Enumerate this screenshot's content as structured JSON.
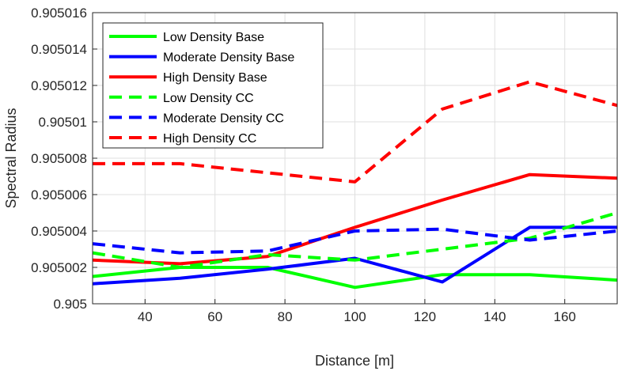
{
  "chart_data": {
    "type": "line",
    "title": "",
    "xlabel": "Distance [m]",
    "ylabel": "Spectral Radius",
    "xlim": [
      25,
      175
    ],
    "ylim": [
      0.905,
      0.905016
    ],
    "x_ticks": [
      40,
      60,
      80,
      100,
      120,
      140,
      160
    ],
    "x_tick_labels": [
      "40",
      "60",
      "80",
      "100",
      "120",
      "140",
      "160"
    ],
    "y_ticks": [
      0.905,
      0.905002,
      0.905004,
      0.905006,
      0.905008,
      0.90501,
      0.905012,
      0.905014,
      0.905016
    ],
    "y_tick_labels": [
      "0.905",
      "0.905002",
      "0.905004",
      "0.905006",
      "0.905008",
      "0.90501",
      "0.905012",
      "0.905014",
      "0.905016"
    ],
    "grid": true,
    "legend_position": "top-left",
    "x": [
      25,
      50,
      75,
      100,
      125,
      150,
      175
    ],
    "series": [
      {
        "name": "Low Density Base",
        "color": "#00ff00",
        "dash": "solid",
        "values": [
          0.9050015,
          0.905002,
          0.905002,
          0.9050009,
          0.9050016,
          0.9050016,
          0.9050013
        ]
      },
      {
        "name": "Moderate Density Base",
        "color": "#0000ff",
        "dash": "solid",
        "values": [
          0.9050011,
          0.9050014,
          0.9050019,
          0.9050025,
          0.9050012,
          0.9050042,
          0.9050042
        ]
      },
      {
        "name": "High Density Base",
        "color": "#ff0000",
        "dash": "solid",
        "values": [
          0.9050024,
          0.9050022,
          0.9050026,
          0.9050042,
          0.9050057,
          0.9050071,
          0.9050069
        ]
      },
      {
        "name": "Low Density CC",
        "color": "#00ff00",
        "dash": "dashed",
        "values": [
          0.9050028,
          0.905002,
          0.9050027,
          0.9050024,
          0.905003,
          0.9050036,
          0.905005
        ]
      },
      {
        "name": "Moderate Density CC",
        "color": "#0000ff",
        "dash": "dashed",
        "values": [
          0.9050033,
          0.9050028,
          0.9050029,
          0.905004,
          0.9050041,
          0.9050035,
          0.905004
        ]
      },
      {
        "name": "High Density CC",
        "color": "#ff0000",
        "dash": "dashed",
        "values": [
          0.9050077,
          0.9050077,
          0.9050072,
          0.9050067,
          0.9050107,
          0.9050122,
          0.9050109
        ]
      }
    ]
  }
}
